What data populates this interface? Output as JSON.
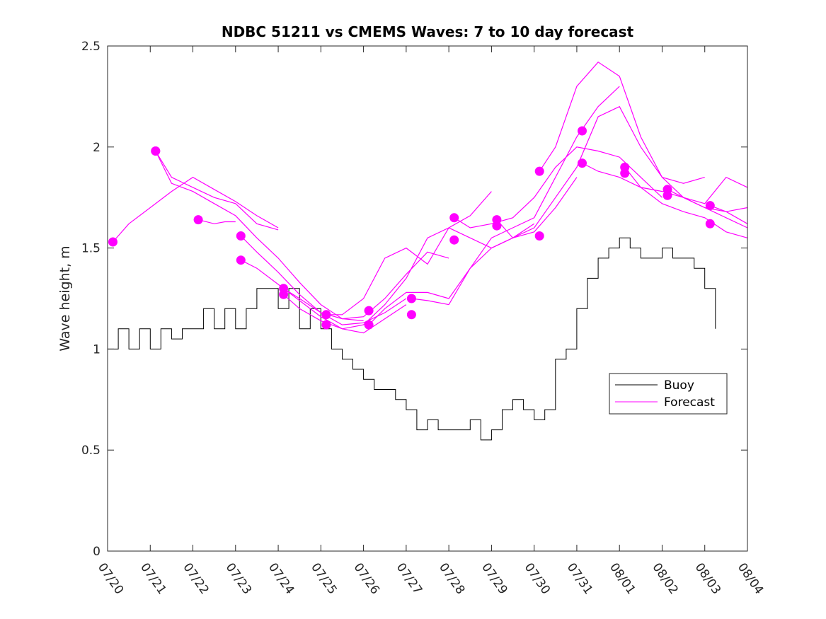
{
  "chart_data": {
    "type": "line",
    "title": "NDBC 51211 vs CMEMS Waves: 7 to 10 day forecast",
    "xlabel": "",
    "ylabel": "Wave height, m",
    "xlim": [
      "07/20",
      "08/04"
    ],
    "ylim": [
      0,
      2.5
    ],
    "x_ticks": [
      "07/20",
      "07/21",
      "07/22",
      "07/23",
      "07/24",
      "07/25",
      "07/26",
      "07/27",
      "07/28",
      "07/29",
      "07/30",
      "07/31",
      "08/01",
      "08/02",
      "08/03",
      "08/04"
    ],
    "y_ticks": [
      "0",
      "0.5",
      "1",
      "1.5",
      "2",
      "2.5"
    ],
    "grid": false,
    "legend": {
      "placement": "right",
      "entries": [
        "Buoy",
        "Forecast"
      ]
    },
    "colors": {
      "buoy": "#000000",
      "forecast": "#ff00ff"
    },
    "series": [
      {
        "name": "Buoy",
        "x": [
          "07/20 00:00",
          "07/20 06:00",
          "07/20 12:00",
          "07/20 18:00",
          "07/21 00:00",
          "07/21 06:00",
          "07/21 12:00",
          "07/21 18:00",
          "07/22 00:00",
          "07/22 06:00",
          "07/22 12:00",
          "07/22 18:00",
          "07/23 00:00",
          "07/23 06:00",
          "07/23 12:00",
          "07/23 18:00",
          "07/24 00:00",
          "07/24 06:00",
          "07/24 12:00",
          "07/24 18:00",
          "07/25 00:00",
          "07/25 06:00",
          "07/25 12:00",
          "07/25 18:00",
          "07/26 00:00",
          "07/26 06:00",
          "07/26 12:00",
          "07/26 18:00",
          "07/27 00:00",
          "07/27 06:00",
          "07/27 12:00",
          "07/27 18:00",
          "07/28 00:00",
          "07/28 06:00",
          "07/28 12:00",
          "07/28 18:00",
          "07/29 00:00",
          "07/29 06:00",
          "07/29 12:00",
          "07/29 18:00",
          "07/30 00:00",
          "07/30 06:00",
          "07/30 12:00",
          "07/30 18:00",
          "07/31 00:00",
          "07/31 06:00",
          "07/31 12:00",
          "07/31 18:00",
          "08/01 00:00",
          "08/01 06:00",
          "08/01 12:00",
          "08/01 18:00",
          "08/02 00:00",
          "08/02 06:00",
          "08/02 12:00",
          "08/02 18:00",
          "08/03 00:00",
          "08/03 06:00"
        ],
        "y": [
          1.0,
          1.1,
          1.0,
          1.1,
          1.0,
          1.1,
          1.05,
          1.1,
          1.1,
          1.2,
          1.1,
          1.2,
          1.1,
          1.2,
          1.3,
          1.3,
          1.2,
          1.3,
          1.1,
          1.2,
          1.1,
          1.0,
          0.95,
          0.9,
          0.85,
          0.8,
          0.8,
          0.75,
          0.7,
          0.6,
          0.65,
          0.6,
          0.6,
          0.6,
          0.65,
          0.55,
          0.6,
          0.7,
          0.75,
          0.7,
          0.65,
          0.7,
          0.95,
          1.0,
          1.2,
          1.35,
          1.45,
          1.5,
          1.55,
          1.5,
          1.45,
          1.45,
          1.5,
          1.45,
          1.45,
          1.4,
          1.3,
          1.1
        ]
      },
      {
        "name": "Forecast",
        "runs": [
          {
            "x": [
              "07/20 03:00",
              "07/20 12:00",
              "07/21 00:00",
              "07/21 12:00",
              "07/22 00:00",
              "07/22 12:00",
              "07/23 00:00",
              "07/23 12:00",
              "07/24 00:00"
            ],
            "y": [
              1.53,
              1.62,
              1.7,
              1.78,
              1.85,
              1.79,
              1.73,
              1.66,
              1.6
            ]
          },
          {
            "x": [
              "07/21 03:00",
              "07/21 12:00",
              "07/22 00:00",
              "07/22 12:00",
              "07/23 00:00",
              "07/23 12:00",
              "07/24 00:00"
            ],
            "y": [
              1.98,
              1.85,
              1.8,
              1.75,
              1.72,
              1.62,
              1.59
            ]
          },
          {
            "x": [
              "07/21 03:00",
              "07/21 12:00",
              "07/22 00:00",
              "07/22 12:00",
              "07/23 00:00",
              "07/23 12:00",
              "07/24 00:00",
              "07/24 12:00",
              "07/25 00:00",
              "07/25 12:00",
              "07/26 00:00"
            ],
            "y": [
              1.98,
              1.82,
              1.78,
              1.72,
              1.66,
              1.55,
              1.45,
              1.33,
              1.22,
              1.15,
              1.14
            ]
          },
          {
            "x": [
              "07/22 03:00",
              "07/22 12:00",
              "07/22 18:00",
              "07/23 00:00"
            ],
            "y": [
              1.64,
              1.62,
              1.63,
              1.63
            ]
          },
          {
            "x": [
              "07/23 03:00",
              "07/23 12:00",
              "07/24 00:00",
              "07/24 12:00",
              "07/25 00:00",
              "07/25 12:00",
              "07/26 00:00",
              "07/26 12:00",
              "07/27 00:00"
            ],
            "y": [
              1.56,
              1.48,
              1.38,
              1.27,
              1.18,
              1.12,
              1.13,
              1.18,
              1.25
            ]
          },
          {
            "x": [
              "07/23 03:00",
              "07/23 12:00",
              "07/24 00:00",
              "07/24 12:00",
              "07/25 00:00",
              "07/25 12:00",
              "07/26 00:00",
              "07/26 12:00",
              "07/27 00:00"
            ],
            "y": [
              1.44,
              1.4,
              1.32,
              1.24,
              1.16,
              1.1,
              1.08,
              1.15,
              1.22
            ]
          },
          {
            "x": [
              "07/24 03:00",
              "07/24 12:00",
              "07/25 00:00",
              "07/25 12:00",
              "07/26 00:00",
              "07/26 12:00",
              "07/27 00:00",
              "07/27 12:00",
              "07/28 00:00"
            ],
            "y": [
              1.3,
              1.25,
              1.18,
              1.15,
              1.16,
              1.25,
              1.37,
              1.48,
              1.45
            ]
          },
          {
            "x": [
              "07/24 03:00",
              "07/24 12:00",
              "07/25 00:00",
              "07/25 12:00",
              "07/26 00:00",
              "07/26 12:00",
              "07/27 00:00",
              "07/27 12:00",
              "07/28 00:00",
              "07/28 12:00",
              "07/29 00:00"
            ],
            "y": [
              1.27,
              1.2,
              1.14,
              1.1,
              1.12,
              1.22,
              1.35,
              1.55,
              1.6,
              1.66,
              1.78
            ]
          },
          {
            "x": [
              "07/25 03:00",
              "07/25 12:00",
              "07/26 00:00",
              "07/26 12:00",
              "07/27 00:00",
              "07/27 12:00",
              "07/28 00:00",
              "07/28 12:00",
              "07/29 00:00",
              "07/29 12:00",
              "07/30 00:00"
            ],
            "y": [
              1.17,
              1.17,
              1.25,
              1.45,
              1.5,
              1.42,
              1.6,
              1.55,
              1.5,
              1.55,
              1.62
            ]
          },
          {
            "x": [
              "07/26 03:00",
              "07/26 12:00",
              "07/27 00:00",
              "07/27 12:00",
              "07/28 00:00",
              "07/28 12:00",
              "07/29 00:00",
              "07/29 12:00",
              "07/30 00:00",
              "07/30 12:00",
              "07/31 00:00"
            ],
            "y": [
              1.12,
              1.2,
              1.28,
              1.28,
              1.25,
              1.4,
              1.5,
              1.55,
              1.58,
              1.7,
              1.85
            ]
          },
          {
            "x": [
              "07/27 03:00",
              "07/27 12:00",
              "07/28 00:00",
              "07/28 12:00",
              "07/29 00:00",
              "07/29 12:00",
              "07/30 00:00",
              "07/30 12:00",
              "07/31 00:00",
              "07/31 12:00",
              "08/01 00:00"
            ],
            "y": [
              1.25,
              1.24,
              1.22,
              1.4,
              1.55,
              1.6,
              1.65,
              1.85,
              2.05,
              2.2,
              2.3
            ]
          },
          {
            "x": [
              "07/28 03:00",
              "07/28 12:00",
              "07/29 00:00",
              "07/29 12:00",
              "07/30 00:00",
              "07/30 12:00",
              "07/31 00:00",
              "07/31 12:00",
              "08/01 00:00",
              "08/01 12:00",
              "08/02 00:00"
            ],
            "y": [
              1.65,
              1.6,
              1.62,
              1.65,
              1.75,
              1.9,
              2.0,
              1.98,
              1.95,
              1.85,
              1.75
            ]
          },
          {
            "x": [
              "07/29 03:00",
              "07/29 12:00",
              "07/30 00:00",
              "07/30 12:00",
              "07/31 00:00",
              "07/31 12:00",
              "08/01 00:00",
              "08/01 12:00",
              "08/02 00:00",
              "08/02 12:00",
              "08/03 00:00"
            ],
            "y": [
              1.64,
              1.55,
              1.6,
              1.75,
              1.9,
              2.15,
              2.2,
              2.0,
              1.85,
              1.82,
              1.85
            ]
          },
          {
            "x": [
              "07/30 03:00",
              "07/30 12:00",
              "07/31 00:00",
              "07/31 12:00",
              "08/01 00:00",
              "08/01 12:00",
              "08/02 00:00",
              "08/02 12:00",
              "08/03 00:00",
              "08/03 12:00",
              "08/04 00:00"
            ],
            "y": [
              1.88,
              2.0,
              2.3,
              2.42,
              2.35,
              2.05,
              1.85,
              1.75,
              1.7,
              1.65,
              1.6
            ]
          },
          {
            "x": [
              "07/31 03:00",
              "07/31 12:00",
              "08/01 00:00",
              "08/01 12:00",
              "08/02 00:00",
              "08/02 12:00",
              "08/03 00:00",
              "08/03 12:00",
              "08/04 00:00"
            ],
            "y": [
              1.92,
              1.88,
              1.85,
              1.8,
              1.72,
              1.68,
              1.65,
              1.58,
              1.55
            ]
          },
          {
            "x": [
              "08/01 03:00",
              "08/01 12:00",
              "08/02 00:00",
              "08/02 12:00",
              "08/03 00:00",
              "08/03 12:00",
              "08/04 00:00"
            ],
            "y": [
              1.9,
              1.8,
              1.78,
              1.75,
              1.72,
              1.85,
              1.8
            ]
          },
          {
            "x": [
              "08/02 03:00",
              "08/02 12:00",
              "08/03 00:00",
              "08/03 12:00",
              "08/04 00:00"
            ],
            "y": [
              1.79,
              1.75,
              1.7,
              1.68,
              1.7
            ]
          },
          {
            "x": [
              "08/03 03:00",
              "08/03 12:00",
              "08/04 00:00"
            ],
            "y": [
              1.71,
              1.68,
              1.62
            ]
          }
        ],
        "markers": {
          "x": [
            "07/20 03:00",
            "07/21 03:00",
            "07/21 03:00",
            "07/22 03:00",
            "07/23 03:00",
            "07/23 03:00",
            "07/24 03:00",
            "07/24 03:00",
            "07/25 03:00",
            "07/25 03:00",
            "07/26 03:00",
            "07/26 03:00",
            "07/27 03:00",
            "07/27 03:00",
            "07/28 03:00",
            "07/28 03:00",
            "07/29 03:00",
            "07/29 03:00",
            "07/30 03:00",
            "07/30 03:00",
            "07/31 03:00",
            "07/31 03:00",
            "08/01 03:00",
            "08/01 03:00",
            "08/02 03:00",
            "08/02 03:00",
            "08/03 03:00",
            "08/03 03:00"
          ],
          "y": [
            1.53,
            1.98,
            1.98,
            1.64,
            1.56,
            1.44,
            1.3,
            1.27,
            1.17,
            1.12,
            1.19,
            1.12,
            1.25,
            1.17,
            1.65,
            1.54,
            1.64,
            1.61,
            1.88,
            1.56,
            2.08,
            1.92,
            1.9,
            1.87,
            1.79,
            1.76,
            1.71,
            1.62
          ]
        }
      }
    ]
  }
}
